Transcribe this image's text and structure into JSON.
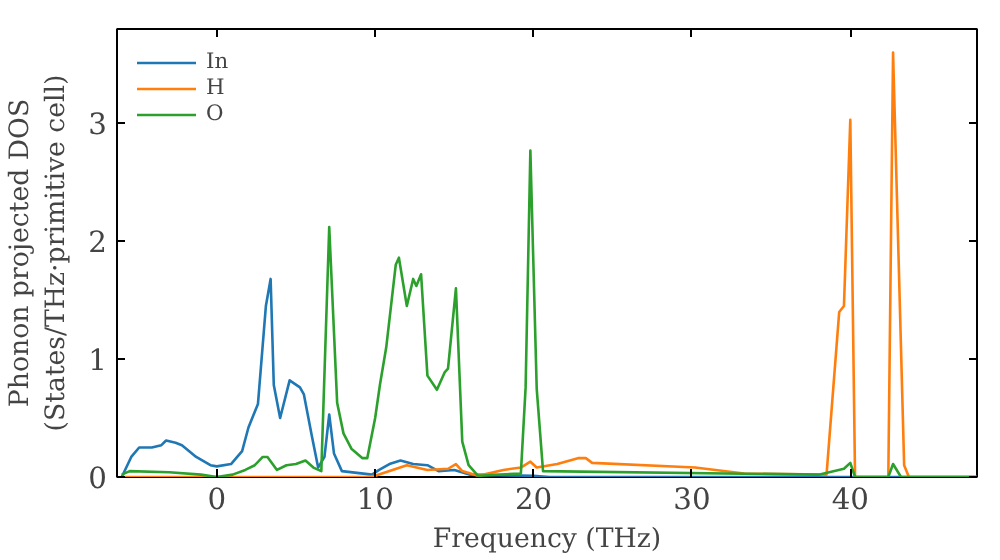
{
  "chart_data": {
    "type": "line",
    "xlabel": "Frequency (THz)",
    "ylabel": "Phonon projected DOS\n(States/THz·primitive cell)",
    "xlim": [
      -6.3,
      48
    ],
    "ylim": [
      0,
      3.8
    ],
    "xticks": [
      0,
      10,
      20,
      30,
      40
    ],
    "yticks": [
      0,
      1,
      2,
      3
    ],
    "legend": "top left",
    "grid": false,
    "series": [
      {
        "name": "In",
        "color": "#1f77b4",
        "x": [
          -6.0,
          -5.4,
          -4.9,
          -4.1,
          -3.5,
          -3.2,
          -2.6,
          -2.2,
          -1.3,
          -0.4,
          0.0,
          0.9,
          1.6,
          2.0,
          2.6,
          3.1,
          3.4,
          3.6,
          4.0,
          4.6,
          5.25,
          5.5,
          6.0,
          6.4,
          6.8,
          7.1,
          7.4,
          7.9,
          9.8,
          10.25,
          10.9,
          11.6,
          12.4,
          13.3,
          14.0,
          15.0,
          16.0,
          20.0,
          21.0,
          48.0
        ],
        "values": [
          0.0,
          0.17,
          0.25,
          0.25,
          0.27,
          0.31,
          0.29,
          0.27,
          0.17,
          0.1,
          0.09,
          0.11,
          0.22,
          0.42,
          0.62,
          1.45,
          1.68,
          0.78,
          0.5,
          0.82,
          0.76,
          0.7,
          0.35,
          0.08,
          0.17,
          0.53,
          0.2,
          0.05,
          0.02,
          0.06,
          0.11,
          0.14,
          0.11,
          0.1,
          0.05,
          0.06,
          0.02,
          0.01,
          0.0,
          0.0
        ]
      },
      {
        "name": "H",
        "color": "#ff7f0e",
        "x": [
          -6.0,
          9.5,
          10.0,
          12.0,
          13.3,
          14.6,
          15.1,
          15.5,
          16.5,
          18.1,
          19.2,
          19.8,
          20.2,
          21.5,
          22.8,
          23.3,
          23.7,
          30.2,
          33.3,
          38.5,
          39.3,
          39.6,
          40.0,
          40.3,
          42.4,
          42.7,
          43.4,
          43.7,
          48.0
        ],
        "values": [
          0.0,
          0.0,
          0.01,
          0.1,
          0.06,
          0.07,
          0.11,
          0.05,
          0.01,
          0.06,
          0.08,
          0.13,
          0.08,
          0.11,
          0.16,
          0.16,
          0.12,
          0.08,
          0.03,
          0.02,
          1.4,
          1.45,
          3.03,
          0.0,
          0.0,
          3.6,
          0.1,
          0.0,
          0.0
        ]
      },
      {
        "name": "O",
        "color": "#2ca02c",
        "x": [
          -6.0,
          -5.5,
          -3.0,
          -1.0,
          0.0,
          1.0,
          1.8,
          2.4,
          2.9,
          3.2,
          3.8,
          4.4,
          5.0,
          5.6,
          6.1,
          6.6,
          7.1,
          7.6,
          8.0,
          8.5,
          9.2,
          9.5,
          10.0,
          10.3,
          10.7,
          11.3,
          11.5,
          12.0,
          12.4,
          12.6,
          12.9,
          13.3,
          13.9,
          14.4,
          14.6,
          15.1,
          15.5,
          15.9,
          16.5,
          19.2,
          19.5,
          19.8,
          20.2,
          20.6,
          38.0,
          39.6,
          40.0,
          40.3,
          42.4,
          42.7,
          43.2,
          48.0
        ],
        "values": [
          0.02,
          0.05,
          0.04,
          0.02,
          0.0,
          0.02,
          0.06,
          0.1,
          0.17,
          0.17,
          0.06,
          0.1,
          0.11,
          0.14,
          0.08,
          0.05,
          2.12,
          0.63,
          0.37,
          0.24,
          0.16,
          0.16,
          0.5,
          0.78,
          1.1,
          1.8,
          1.86,
          1.45,
          1.68,
          1.62,
          1.72,
          0.86,
          0.74,
          0.89,
          0.92,
          1.6,
          0.3,
          0.1,
          0.01,
          0.03,
          0.76,
          2.77,
          0.75,
          0.05,
          0.02,
          0.07,
          0.12,
          0.0,
          0.0,
          0.11,
          0.0,
          0.0
        ]
      }
    ]
  }
}
